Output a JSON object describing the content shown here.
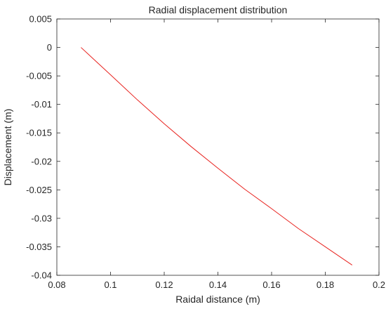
{
  "chart_data": {
    "type": "line",
    "title": "Radial displacement distribution",
    "xlabel": "Raidal distance (m)",
    "ylabel": "Displacement (m)",
    "xlim": [
      0.08,
      0.2
    ],
    "ylim": [
      -0.04,
      0.005
    ],
    "xticks": [
      "0.08",
      "0.1",
      "0.12",
      "0.14",
      "0.16",
      "0.18",
      "0.2"
    ],
    "yticks": [
      "0.005",
      "0",
      "-0.005",
      "-0.01",
      "-0.015",
      "-0.02",
      "-0.025",
      "-0.03",
      "-0.035",
      "-0.04"
    ],
    "grid": false,
    "series": [
      {
        "color": "#e8231f",
        "x": [
          0.089,
          0.1,
          0.11,
          0.12,
          0.13,
          0.14,
          0.15,
          0.16,
          0.17,
          0.18,
          0.19
        ],
        "y": [
          0.0,
          -0.0048,
          -0.0092,
          -0.0134,
          -0.0174,
          -0.0212,
          -0.0249,
          -0.0283,
          -0.0318,
          -0.035,
          -0.0382
        ]
      }
    ]
  }
}
